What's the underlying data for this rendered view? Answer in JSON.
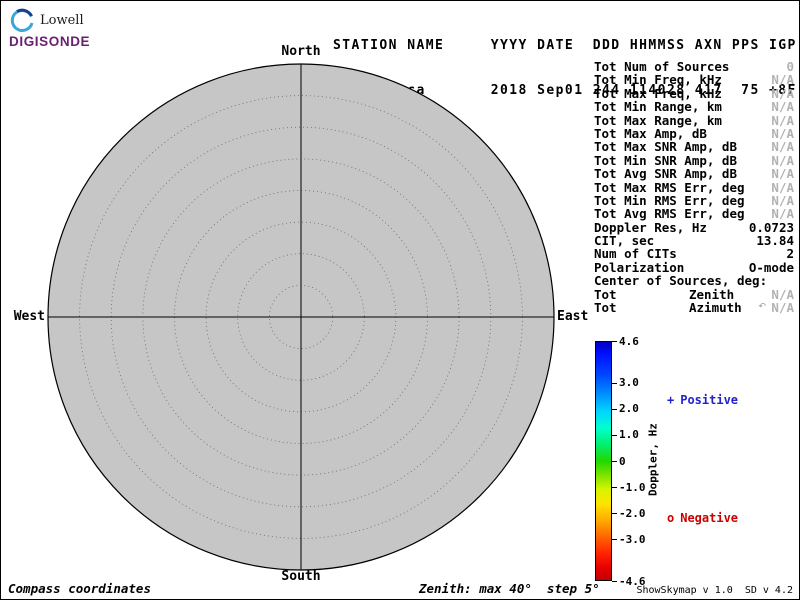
{
  "logo": {
    "brand": "Lowell",
    "product": "DIGISONDE"
  },
  "header": {
    "line1": "STATION NAME     YYYY DATE  DDD HHMMSS AXN PPS IGP",
    "line2": " Jicamarca       2018 Sep01 244 114028 417  75 +8F"
  },
  "station": {
    "name": "Jicamarca",
    "year": "2018",
    "date": "Sep01",
    "day_of_year": "244",
    "time_hhmmss": "114028",
    "axn": "417",
    "pps": "75",
    "igp": "+8F"
  },
  "compass": {
    "north": "North",
    "south": "South",
    "east": "East",
    "west": "West"
  },
  "plot": {
    "type": "polar-skymap",
    "coordinates": "Compass",
    "max_zenith_deg": 40,
    "step_deg": 5,
    "num_sources_plotted": 0
  },
  "stats": {
    "rows": [
      {
        "label": "Tot Num of Sources",
        "value": "0",
        "muted": true
      },
      {
        "label": "Tot Min Freq, kHz",
        "value": "N/A",
        "muted": true
      },
      {
        "label": "Tot Max Freq, kHz",
        "value": "N/A",
        "muted": true
      },
      {
        "label": "Tot Min Range, km",
        "value": "N/A",
        "muted": true
      },
      {
        "label": "Tot Max Range, km",
        "value": "N/A",
        "muted": true
      },
      {
        "label": "Tot Max Amp, dB",
        "value": "N/A",
        "muted": true
      },
      {
        "label": "Tot Max SNR Amp, dB",
        "value": "N/A",
        "muted": true
      },
      {
        "label": "Tot Min SNR Amp, dB",
        "value": "N/A",
        "muted": true
      },
      {
        "label": "Tot Avg SNR Amp, dB",
        "value": "N/A",
        "muted": true
      },
      {
        "label": "Tot Max RMS Err, deg",
        "value": "N/A",
        "muted": true
      },
      {
        "label": "Tot Min RMS Err, deg",
        "value": "N/A",
        "muted": true
      },
      {
        "label": "Tot Avg RMS Err, deg",
        "value": "N/A",
        "muted": true
      },
      {
        "label": "Doppler Res, Hz",
        "value": "0.0723",
        "muted": false
      },
      {
        "label": "CIT, sec",
        "value": "13.84",
        "muted": false
      },
      {
        "label": "Num of CITs",
        "value": "2",
        "muted": false
      },
      {
        "label": "Polarization",
        "value": "O-mode",
        "muted": false
      },
      {
        "label": "Center of Sources, deg:",
        "value": "",
        "muted": false
      },
      {
        "label": "Tot",
        "mid": "Zenith",
        "value": "N/A",
        "muted": true
      },
      {
        "label": "Tot",
        "mid": "Azimuth",
        "sym": "↶",
        "value": "N/A",
        "muted": true
      }
    ]
  },
  "colorbar": {
    "title": "Doppler, Hz",
    "ticks": [
      "4.6",
      "3.0",
      "2.0",
      "1.0",
      "0",
      "-1.0",
      "-2.0",
      "-3.0",
      "-4.6"
    ],
    "tick_values": [
      4.6,
      3.0,
      2.0,
      1.0,
      0,
      -1.0,
      -2.0,
      -3.0,
      -4.6
    ],
    "range": [
      -4.6,
      4.6
    ]
  },
  "legend": {
    "positive_symbol": "+",
    "positive_label": "Positive",
    "positive_color": "#2222cc",
    "negative_symbol": "o",
    "negative_label": "Negative",
    "negative_color": "#cc0000"
  },
  "footer": {
    "left": "Compass coordinates",
    "zenith_note": "Zenith: max 40°  step 5°",
    "version": "ShowSkymap v 1.0  SD v 4.2"
  }
}
